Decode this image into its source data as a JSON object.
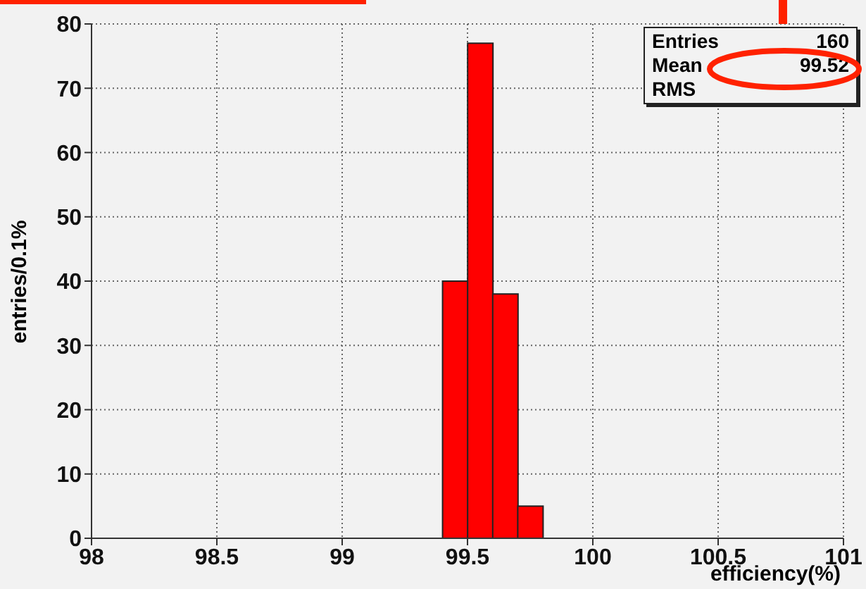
{
  "chart_data": {
    "type": "histogram",
    "xlabel": "efficiency(%)",
    "ylabel": "entries/0.1%",
    "bins": [
      99.4,
      99.5,
      99.6,
      99.7,
      99.8
    ],
    "values": [
      40,
      77,
      38,
      5
    ],
    "color": "#ff0000",
    "xlim": [
      98,
      101
    ],
    "xticks": [
      98,
      98.5,
      99,
      99.5,
      100,
      100.5,
      101
    ],
    "ylim": [
      0,
      80
    ],
    "yticks": [
      0,
      10,
      20,
      30,
      40,
      50,
      60,
      70,
      80
    ],
    "grid": true,
    "annotations": [
      "Entries 160",
      "Mean 99.52",
      "RMS"
    ]
  }
}
